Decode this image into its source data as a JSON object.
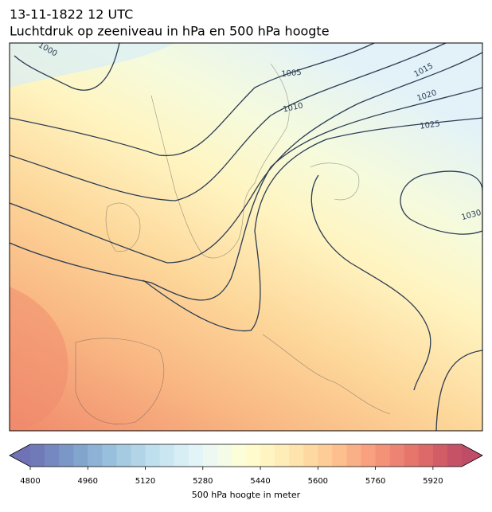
{
  "title": "13-11-1822 12 UTC",
  "subtitle": "Luchtdruk op zeeniveau in hPa en 500 hPa hoogte",
  "map": {
    "isobar_labels": [
      1000,
      1005,
      1010,
      1015,
      1020,
      1025,
      1030
    ]
  },
  "colorbar": {
    "label": "500 hPa hoogte in meter",
    "colormap": "RdYlBu_r",
    "clim": [
      4800,
      6000
    ],
    "level_step": 40,
    "ticks": [
      4800,
      4960,
      5120,
      5280,
      5440,
      5600,
      5760,
      5920
    ]
  }
}
